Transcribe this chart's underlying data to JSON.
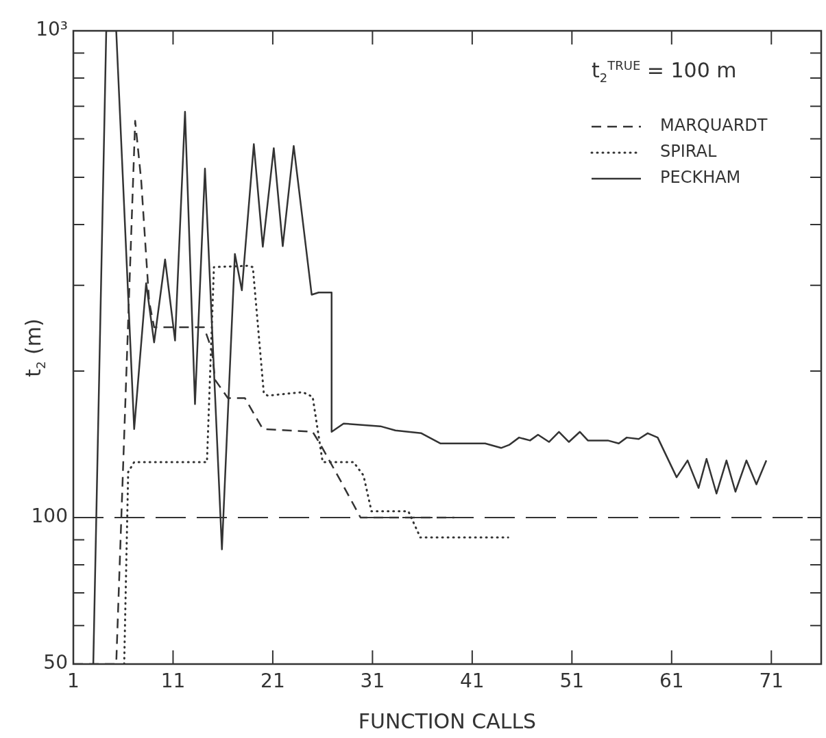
{
  "chart_data": {
    "type": "line",
    "xlabel": "FUNCTION CALLS",
    "ylabel": "t$_{2}$ (m)",
    "log": "y",
    "legend": "top right",
    "xlim": [
      1,
      76
    ],
    "xticks": [
      1,
      11,
      21,
      31,
      41,
      51,
      61,
      71
    ],
    "ylim": [
      50,
      1000
    ],
    "yticks": [
      50,
      {
        "value": 60,
        "label": null
      },
      {
        "value": 70,
        "label": null
      },
      {
        "value": 80,
        "label": null
      },
      {
        "value": 90,
        "label": null
      },
      100,
      {
        "value": 200,
        "label": null
      },
      {
        "value": 300,
        "label": null
      },
      {
        "value": 400,
        "label": null
      },
      {
        "value": 500,
        "label": null
      },
      {
        "value": 600,
        "label": null
      },
      {
        "value": 700,
        "label": null
      },
      {
        "value": 800,
        "label": null
      },
      {
        "value": 900,
        "label": null
      },
      {
        "value": 1000,
        "label": "10³"
      }
    ],
    "annotations": [
      "t$_{2}$$^{TRUE}$ = 100 m"
    ],
    "ref_lines": [
      {
        "axis": "y",
        "value": 100,
        "line_style": "dashed",
        "color": "#333333"
      }
    ],
    "series": [
      {
        "name": "MARQUARDT",
        "color": "#333333",
        "line_style": "dashed",
        "x": [
          1,
          5.3,
          7.2,
          7.8,
          8.6,
          9.1,
          14.1,
          14.9,
          15.2,
          16.5,
          18.2,
          20.0,
          25.0,
          25.8,
          27.9,
          29.8,
          39.2
        ],
        "values": [
          50,
          50,
          653,
          494,
          278,
          246,
          246,
          221,
          192,
          176,
          176,
          152,
          150,
          141,
          118,
          100,
          100
        ]
      },
      {
        "name": "SPIRAL",
        "color": "#333333",
        "line_style": "dotted",
        "x": [
          6.1,
          6.5,
          7.1,
          14.4,
          15.1,
          18.5,
          19.0,
          20.1,
          20.5,
          24.0,
          25.0,
          26.0,
          29.1,
          30.1,
          30.9,
          34.6,
          35.8,
          44.6
        ],
        "values": [
          50,
          124,
          130,
          130,
          327,
          329,
          327,
          180,
          178,
          181,
          177,
          130,
          130,
          122,
          103,
          103,
          91,
          91
        ]
      },
      {
        "name": "PECKHAM",
        "color": "#333333",
        "line_style": "solid",
        "x": [
          3.0,
          4.3,
          5.3,
          7.1,
          8.3,
          9.1,
          10.2,
          11.2,
          12.2,
          13.2,
          14.2,
          15.9,
          17.2,
          17.9,
          19.1,
          20.0,
          21.1,
          22.0,
          23.1,
          24.9,
          25.6,
          26.9,
          26.9,
          28.1,
          31.8,
          33.3,
          35.9,
          37.8,
          40.0,
          42.3,
          43.9,
          44.7,
          45.7,
          46.8,
          47.6,
          48.7,
          49.7,
          50.7,
          51.8,
          52.6,
          54.6,
          55.7,
          56.5,
          57.7,
          58.6,
          59.6,
          61.5,
          62.6,
          63.7,
          64.5,
          65.5,
          66.5,
          67.4,
          68.5,
          69.5,
          70.5
        ],
        "values": [
          50,
          1000,
          1000,
          152,
          303,
          229,
          339,
          231,
          682,
          171,
          521,
          86,
          348,
          293,
          585,
          360,
          574,
          361,
          580,
          287,
          290,
          290,
          150,
          156,
          154,
          151,
          149,
          142,
          142,
          142,
          139,
          141,
          146,
          144,
          148,
          143,
          150,
          143,
          150,
          144,
          144,
          142,
          146,
          145,
          149,
          146,
          121,
          131,
          115,
          132,
          112,
          131,
          113,
          131,
          117,
          131
        ]
      }
    ]
  }
}
